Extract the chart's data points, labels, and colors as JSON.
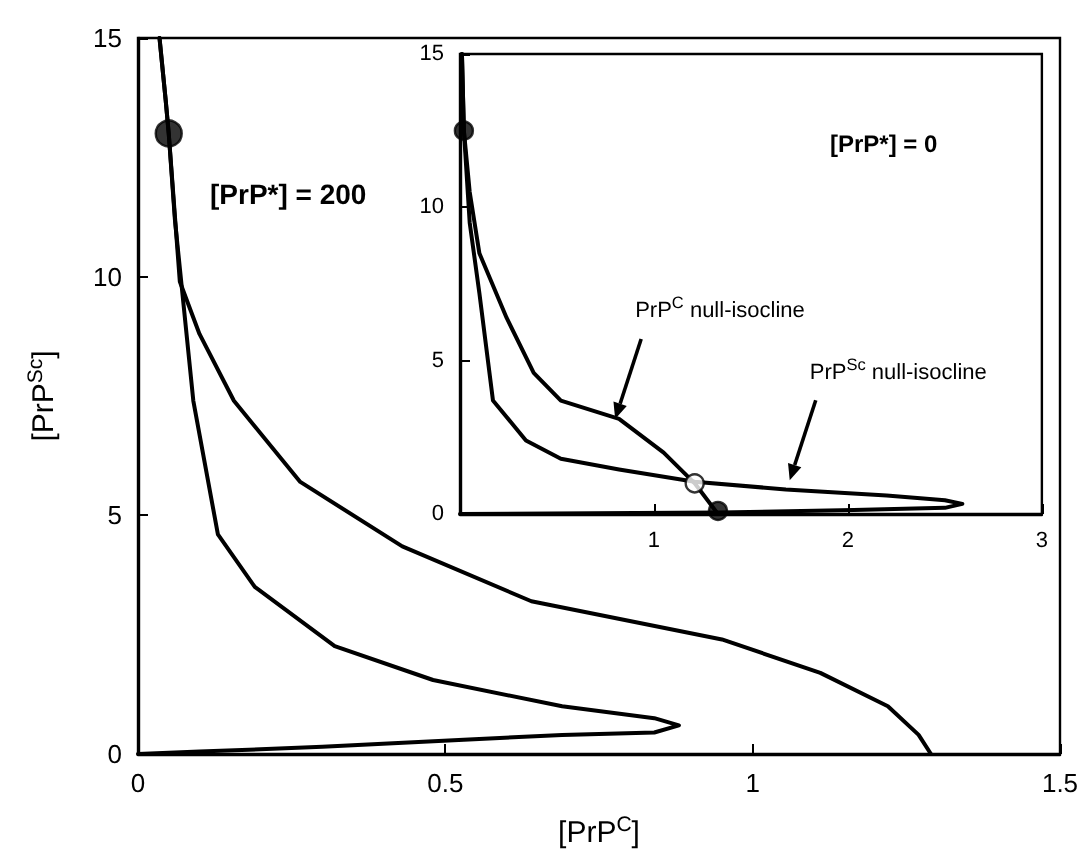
{
  "chart_data": [
    {
      "type": "line",
      "xlabel": "[PrP$^{C}$]",
      "ylabel": "[PrP$^{Sc}$]",
      "xlim": [
        0,
        1.5
      ],
      "ylim": [
        0,
        15
      ],
      "xticks": [
        0,
        0.5,
        1,
        1.5
      ],
      "yticks": [
        0,
        5,
        10,
        15
      ],
      "grid": false,
      "line_style": "solid",
      "annotations": [
        "[PrP*] = 200"
      ],
      "series": [
        {
          "marker": "none",
          "color": "#000000",
          "x": [
            0.035,
            0.045,
            0.05,
            0.068,
            0.1,
            0.156,
            0.264,
            0.43,
            0.64,
            0.95,
            1.11,
            1.22,
            1.27,
            1.29
          ],
          "values": [
            15,
            13.7,
            13,
            9.9,
            8.8,
            7.4,
            5.7,
            4.35,
            3.2,
            2.4,
            1.7,
            1.0,
            0.4,
            0
          ]
        },
        {
          "marker": "none",
          "color": "#000000",
          "x": [
            0.035,
            0.045,
            0.05,
            0.06,
            0.09,
            0.13,
            0.19,
            0.32,
            0.48,
            0.69,
            0.84,
            0.88,
            0.84,
            0.69,
            0.53,
            0.3,
            0.1,
            0
          ],
          "values": [
            15,
            13.7,
            13,
            11.2,
            7.4,
            4.6,
            3.5,
            2.26,
            1.55,
            1.0,
            0.75,
            0.6,
            0.45,
            0.4,
            0.3,
            0.15,
            0.05,
            0
          ]
        },
        {
          "type": "scatter",
          "marker": "circle",
          "colors": [
            "#000000"
          ],
          "x": [
            0.05
          ],
          "values": [
            13
          ]
        }
      ]
    },
    {
      "type": "line",
      "xlim": [
        0,
        3
      ],
      "ylim": [
        0,
        15
      ],
      "xticks": [
        1,
        2,
        3
      ],
      "yticks": [
        0,
        5,
        10,
        15
      ],
      "grid": false,
      "line_style": "solid",
      "annotations": [
        "[PrP*] = 0",
        {
          "text": "PrP$^{C}$ null-isocline",
          "x": 0.8,
          "y": 3.1
        },
        {
          "text": "PrP$^{Sc}$ null-isocline",
          "x": 1.7,
          "y": 1.1
        }
      ],
      "series": [
        {
          "marker": "none",
          "color": "#000000",
          "x": [
            0.01,
            0.02,
            0.05,
            0.1,
            0.24,
            0.38,
            0.52,
            0.82,
            1.05,
            1.21,
            1.33
          ],
          "values": [
            15,
            12.5,
            10.5,
            8.5,
            6.4,
            4.6,
            3.7,
            3.1,
            2.0,
            1.0,
            0
          ]
        },
        {
          "marker": "none",
          "color": "#000000",
          "x": [
            0.01,
            0.02,
            0.05,
            0.1,
            0.17,
            0.34,
            0.52,
            0.82,
            1.21,
            1.68,
            2.2,
            2.5,
            2.59,
            2.5,
            2.03,
            1.34,
            0
          ],
          "values": [
            15,
            12.5,
            9.5,
            7.2,
            3.7,
            2.4,
            1.8,
            1.45,
            1.05,
            0.8,
            0.6,
            0.45,
            0.33,
            0.2,
            0.13,
            0.05,
            0
          ]
        },
        {
          "type": "scatter",
          "marker": "circle",
          "colors": [
            "#000000",
            "#ffffff",
            "#000000"
          ],
          "x": [
            0.02,
            1.21,
            1.33
          ],
          "values": [
            12.5,
            1.0,
            0.1
          ]
        }
      ]
    }
  ]
}
